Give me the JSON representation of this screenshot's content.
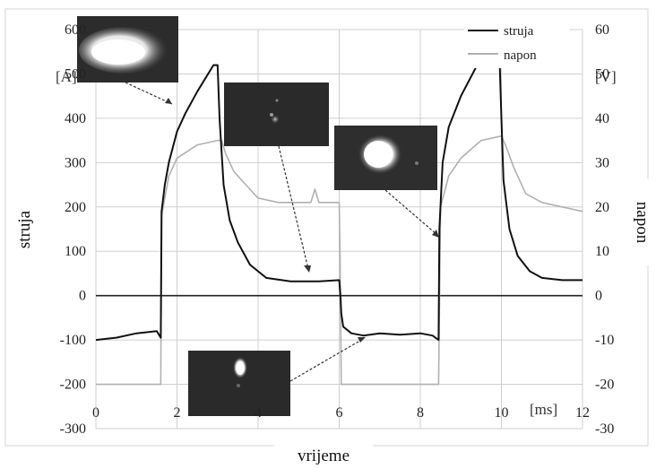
{
  "chart_data": {
    "type": "line",
    "xlabel": "vrijeme",
    "x_unit": "[ms]",
    "xlim": [
      0,
      12
    ],
    "x_ticks": [
      "0",
      "2",
      "4",
      "6",
      "8",
      "10",
      "12"
    ],
    "ylabel_left": "struja",
    "y_left_unit": "[A]",
    "ylim_left": [
      -300,
      600
    ],
    "y_left_ticks": [
      "600",
      "500",
      "400",
      "300",
      "200",
      "100",
      "0",
      "-100",
      "-200",
      "-300"
    ],
    "ylabel_right": "napon",
    "y_right_unit": "[V]",
    "ylim_right": [
      -30,
      60
    ],
    "y_right_ticks": [
      "60",
      "50",
      "40",
      "30",
      "20",
      "10",
      "0",
      "-10",
      "-20",
      "-30"
    ],
    "grid": true,
    "legend_position": "top-right",
    "series": [
      {
        "name": "struja",
        "axis": "left",
        "color": "#111111",
        "x": [
          0.0,
          0.5,
          1.0,
          1.5,
          1.6,
          1.62,
          1.7,
          1.8,
          2.0,
          2.2,
          2.5,
          2.9,
          3.0,
          3.05,
          3.15,
          3.3,
          3.5,
          3.8,
          4.2,
          4.8,
          5.5,
          6.0,
          6.03,
          6.05,
          6.1,
          6.3,
          6.6,
          7.0,
          7.5,
          8.0,
          8.3,
          8.45,
          8.47,
          8.55,
          8.7,
          9.0,
          9.4,
          9.8,
          9.95,
          10.0,
          10.05,
          10.2,
          10.4,
          10.7,
          11.0,
          11.5,
          12.0
        ],
        "y": [
          -100,
          -95,
          -85,
          -80,
          -95,
          190,
          250,
          300,
          370,
          410,
          460,
          520,
          520,
          400,
          250,
          170,
          120,
          70,
          40,
          32,
          32,
          35,
          0,
          -40,
          -70,
          -85,
          -90,
          -85,
          -88,
          -85,
          -90,
          -100,
          150,
          300,
          380,
          450,
          520,
          555,
          550,
          400,
          260,
          150,
          90,
          55,
          40,
          35,
          35
        ]
      },
      {
        "name": "napon",
        "axis": "right",
        "color": "#b0b0b0",
        "x": [
          0.0,
          1.5,
          1.6,
          1.62,
          1.8,
          2.0,
          2.5,
          3.0,
          3.1,
          3.2,
          3.4,
          3.7,
          4.0,
          4.5,
          5.0,
          5.3,
          5.4,
          5.5,
          5.8,
          6.0,
          6.02,
          6.05,
          6.5,
          7.0,
          7.5,
          8.0,
          8.4,
          8.45,
          8.5,
          8.7,
          9.0,
          9.5,
          10.0,
          10.1,
          10.3,
          10.6,
          11.0,
          11.5,
          12.0
        ],
        "y": [
          -20,
          -20,
          -20,
          18,
          27,
          31,
          34,
          35,
          35,
          32,
          28,
          25,
          22,
          21,
          21,
          21,
          24,
          21,
          21,
          21,
          10,
          -20,
          -20,
          -20,
          -20,
          -20,
          -20,
          -20,
          20,
          27,
          31,
          35,
          36,
          34,
          29,
          23,
          21,
          20,
          19
        ]
      }
    ]
  },
  "legend": {
    "struja": {
      "label": "struja"
    },
    "napon": {
      "label": "napon"
    }
  },
  "insets": [
    {
      "name": "inset-photo-1",
      "glow": "large-bright"
    },
    {
      "name": "inset-photo-2",
      "glow": "faint-spots"
    },
    {
      "name": "inset-photo-3",
      "glow": "bright-blob"
    },
    {
      "name": "inset-photo-4",
      "glow": "small-drop"
    }
  ],
  "colors": {
    "current": "#111111",
    "voltage": "#b0b0b0",
    "grid": "#cfcfcf",
    "zero_line": "#222222"
  }
}
